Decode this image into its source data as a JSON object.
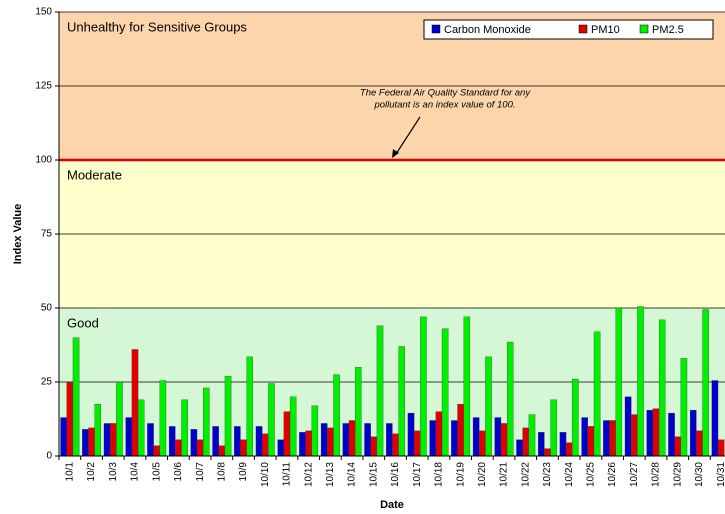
{
  "chart_data": {
    "type": "bar",
    "x_label": "Date",
    "y_label": "Index Value",
    "categories": [
      "10/1",
      "10/2",
      "10/3",
      "10/4",
      "10/5",
      "10/6",
      "10/7",
      "10/8",
      "10/9",
      "10/10",
      "10/11",
      "10/12",
      "10/13",
      "10/14",
      "10/15",
      "10/16",
      "10/17",
      "10/18",
      "10/19",
      "10/20",
      "10/21",
      "10/22",
      "10/23",
      "10/24",
      "10/25",
      "10/26",
      "10/27",
      "10/28",
      "10/29",
      "10/30",
      "10/31"
    ],
    "series": [
      {
        "name": "Carbon Monoxide",
        "color": "#0000cc",
        "values": [
          13,
          9,
          11,
          13,
          11,
          10,
          9,
          10,
          10,
          10,
          5.5,
          8,
          11,
          11,
          11,
          11,
          14.5,
          12,
          12,
          13,
          13,
          5.5,
          8,
          8,
          13,
          12,
          20,
          15.5,
          14.5,
          15.5,
          25.5
        ]
      },
      {
        "name": "PM10",
        "color": "#e00000",
        "values": [
          25,
          9.5,
          11,
          36,
          3.5,
          5.5,
          5.5,
          3.5,
          5.5,
          7.5,
          15,
          8.5,
          9.5,
          12,
          6.5,
          7.5,
          8.5,
          15,
          17.5,
          8.5,
          11,
          9.5,
          2.5,
          4.5,
          10,
          12,
          14,
          16,
          6.5,
          8.5,
          5.5
        ]
      },
      {
        "name": "PM2.5",
        "color": "#00ee00",
        "values": [
          40,
          17.5,
          25,
          19,
          25.5,
          19,
          23,
          27,
          33.5,
          24.5,
          20,
          17,
          27.5,
          30,
          44,
          37,
          47,
          43,
          47,
          33.5,
          38.5,
          14,
          19,
          26,
          42,
          50,
          50.5,
          46,
          33,
          49.5,
          null
        ]
      }
    ],
    "ylim": [
      0,
      150
    ],
    "yticks": [
      0,
      25,
      50,
      75,
      100,
      125,
      150
    ],
    "grid": true,
    "bands": [
      {
        "label": "Good",
        "from": 0,
        "to": 50,
        "color": "#d6f7d6",
        "label_color": "#22aa22"
      },
      {
        "label": "Moderate",
        "from": 50,
        "to": 100,
        "color": "#ffffcc",
        "label_color": "#d8c400"
      },
      {
        "label": "Unhealthy for Sensitive Groups",
        "from": 100,
        "to": 150,
        "color": "#fcd5ab",
        "label_color": "#e80000"
      }
    ],
    "reference_line": {
      "value": 100,
      "color": "#dd0000"
    },
    "annotation": [
      "The Federal Air Quality Standard for any",
      "pollutant is an index value of 100."
    ],
    "legend": "top-right"
  }
}
